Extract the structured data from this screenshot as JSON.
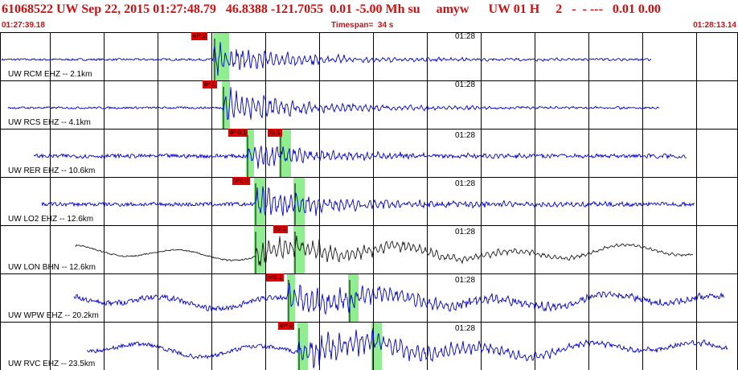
{
  "header": {
    "title": "61068522 UW Sep 22, 2015 01:27:48.79   46.8388 -121.7055  0.01 -5.00 Mh su     amyw      UW 01 H     2   -  - ---   0.01 0.00",
    "start_time": "01:27:39.18",
    "timespan": "Timespan=  34 s",
    "end_time": "01:28:13.14"
  },
  "colors": {
    "header_text": "#d01010",
    "trace": "#0000cc",
    "trace_alt": "#1a1a1a",
    "pick_window": "#90ee90",
    "pick_flag": "#e00000",
    "grid": "#000000"
  },
  "minute_label": "01:28",
  "traces": [
    {
      "label": "UW RCM EHZ -- 2.1km",
      "picks": [
        "eP 2"
      ]
    },
    {
      "label": "UW RCS EHZ -- 4.1km",
      "picks": [
        "iP 1"
      ]
    },
    {
      "label": "UW RER EHZ -- 10.6km",
      "picks": [
        "iP 0.1",
        "iS 1"
      ]
    },
    {
      "label": "UW LO2 EHZ -- 12.6km",
      "picks": [
        "iPc 0"
      ]
    },
    {
      "label": "UW LON BHN -- 12.6km",
      "picks": [
        "iS 1"
      ]
    },
    {
      "label": "UW WPW EHZ -- 20.2km",
      "picks": [
        "iPd 1"
      ]
    },
    {
      "label": "UW RVC EHZ -- 23.5km",
      "picks": [
        "eP 2"
      ]
    }
  ]
}
